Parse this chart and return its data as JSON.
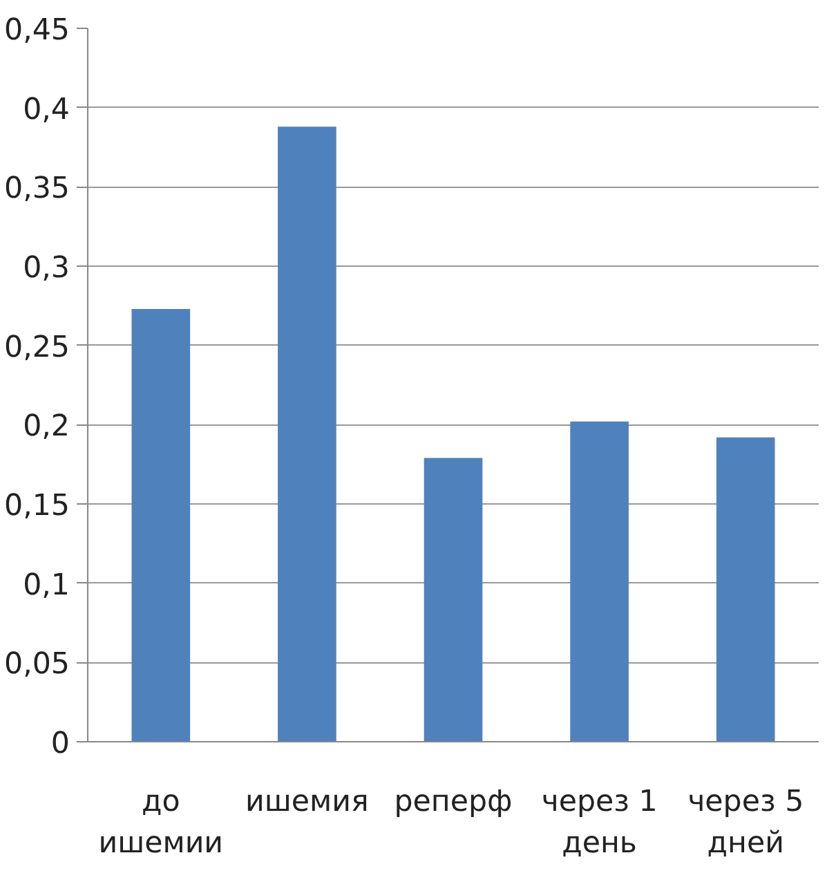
{
  "chart_data": {
    "type": "bar",
    "categories": [
      "до ишемии",
      "ишемия",
      "реперф",
      "через 1 день",
      "через 5 дней"
    ],
    "values": [
      0.273,
      0.388,
      0.179,
      0.202,
      0.192
    ],
    "color": "#4f81bd",
    "ylim": [
      0,
      0.45
    ],
    "yticks": [
      {
        "value": 0,
        "label": "0"
      },
      {
        "value": 0.05,
        "label": "0,05"
      },
      {
        "value": 0.1,
        "label": "0,1"
      },
      {
        "value": 0.15,
        "label": "0,15"
      },
      {
        "value": 0.2,
        "label": "0,2"
      },
      {
        "value": 0.25,
        "label": "0,25"
      },
      {
        "value": 0.3,
        "label": "0,3"
      },
      {
        "value": 0.35,
        "label": "0,35"
      },
      {
        "value": 0.4,
        "label": "0,4"
      },
      {
        "value": 0.45,
        "label": "0,45"
      }
    ],
    "grid": "y"
  }
}
